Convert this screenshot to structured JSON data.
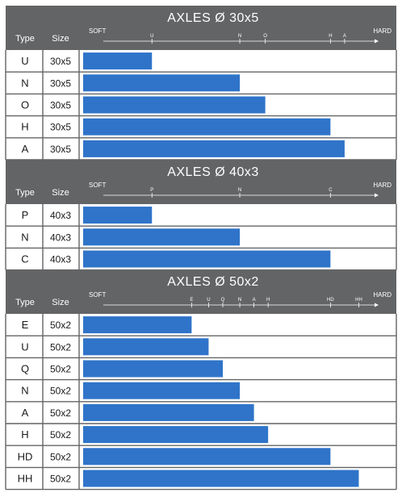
{
  "chart_data": [
    {
      "type": "bar",
      "title": "AXLES Ø 30x5",
      "scale_label_min": "SOFT",
      "scale_label_max": "HARD",
      "column_headers": [
        "Type",
        "Size"
      ],
      "scale_ticks": [
        "U",
        "N",
        "O",
        "H",
        "A"
      ],
      "xlim": [
        0,
        100
      ],
      "rows": [
        {
          "type": "U",
          "size": "30x5",
          "value": 24
        },
        {
          "type": "N",
          "size": "30x5",
          "value": 55
        },
        {
          "type": "O",
          "size": "30x5",
          "value": 64
        },
        {
          "type": "H",
          "size": "30x5",
          "value": 87
        },
        {
          "type": "A",
          "size": "30x5",
          "value": 92
        }
      ]
    },
    {
      "type": "bar",
      "title": "AXLES Ø 40x3",
      "scale_label_min": "SOFT",
      "scale_label_max": "HARD",
      "column_headers": [
        "Type",
        "Size"
      ],
      "scale_ticks": [
        "P",
        "N",
        "C"
      ],
      "xlim": [
        0,
        100
      ],
      "rows": [
        {
          "type": "P",
          "size": "40x3",
          "value": 24
        },
        {
          "type": "N",
          "size": "40x3",
          "value": 55
        },
        {
          "type": "C",
          "size": "40x3",
          "value": 87
        }
      ]
    },
    {
      "type": "bar",
      "title": "AXLES Ø 50x2",
      "scale_label_min": "SOFT",
      "scale_label_max": "HARD",
      "column_headers": [
        "Type",
        "Size"
      ],
      "scale_ticks": [
        "E",
        "U",
        "Q",
        "N",
        "A",
        "H",
        "HD",
        "HH"
      ],
      "xlim": [
        0,
        100
      ],
      "rows": [
        {
          "type": "E",
          "size": "50x2",
          "value": 38
        },
        {
          "type": "U",
          "size": "50x2",
          "value": 44
        },
        {
          "type": "Q",
          "size": "50x2",
          "value": 49
        },
        {
          "type": "N",
          "size": "50x2",
          "value": 55
        },
        {
          "type": "A",
          "size": "50x2",
          "value": 60
        },
        {
          "type": "H",
          "size": "50x2",
          "value": 65
        },
        {
          "type": "HD",
          "size": "50x2",
          "value": 87
        },
        {
          "type": "HH",
          "size": "50x2",
          "value": 97
        }
      ]
    }
  ]
}
